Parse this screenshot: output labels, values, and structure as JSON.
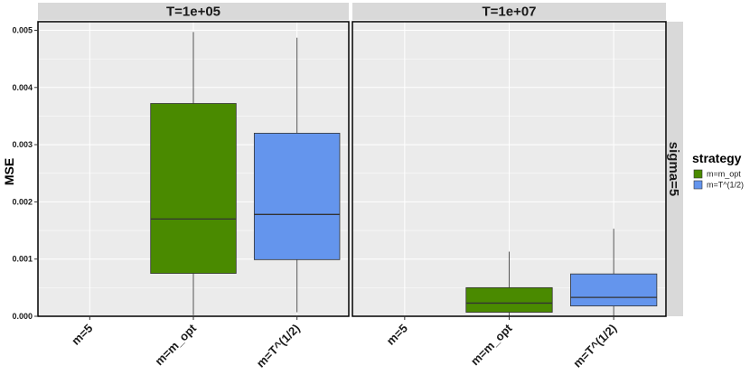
{
  "chart_data": {
    "type": "box",
    "ylabel": "MSE",
    "ylim": [
      0,
      0.00515
    ],
    "y_ticks": [
      "0.000",
      "0.001",
      "0.002",
      "0.003",
      "0.004",
      "0.005"
    ],
    "y_tick_values": [
      0,
      0.001,
      0.002,
      0.003,
      0.004,
      0.005
    ],
    "categories": [
      "m=5",
      "m=m_opt",
      "m=T^(1/2)"
    ],
    "panels": [
      {
        "strip": "T=1e+05",
        "boxes": [
          {
            "category": "m=m_opt",
            "strategy": "m=m_opt",
            "min": 2e-05,
            "q1": 0.00075,
            "median": 0.0017,
            "q3": 0.00372,
            "max": 0.00497
          },
          {
            "category": "m=T^(1/2)",
            "strategy": "m=T^(1/2)",
            "min": 7e-05,
            "q1": 0.00099,
            "median": 0.00178,
            "q3": 0.0032,
            "max": 0.00487
          }
        ]
      },
      {
        "strip": "T=1e+07",
        "boxes": [
          {
            "category": "m=m_opt",
            "strategy": "m=m_opt",
            "min": 1e-05,
            "q1": 7e-05,
            "median": 0.00023,
            "q3": 0.0005,
            "max": 0.00113
          },
          {
            "category": "m=T^(1/2)",
            "strategy": "m=T^(1/2)",
            "min": 1e-05,
            "q1": 0.00018,
            "median": 0.00033,
            "q3": 0.00074,
            "max": 0.00153
          }
        ]
      }
    ],
    "row_strip": "sigma=5",
    "legend": {
      "title": "strategy",
      "position": "right",
      "entries": [
        {
          "label": "m=m_opt",
          "color": "#4a8a00"
        },
        {
          "label": "m=T^(1/2)",
          "color": "#6495ed"
        }
      ]
    },
    "colors": {
      "panel_bg": "#ebebeb",
      "grid": "#ffffff",
      "strip_bg": "#d9d9d9"
    }
  }
}
